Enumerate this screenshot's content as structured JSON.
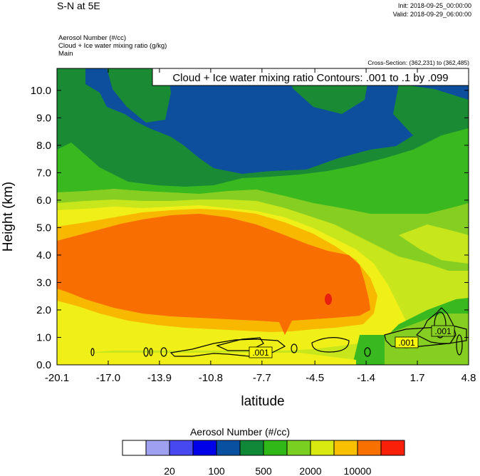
{
  "header": {
    "title": "S-N at 5E",
    "init": "Init: 2018-09-25_00:00:00",
    "valid": "Valid: 2018-09-29_06:00:00",
    "field1": "Aerosol Number   (#/cc)",
    "field2": "Cloud + Ice water mixing ratio   (g/kg)",
    "field3": "Main",
    "cross_section": "Cross-Section: (362,231) to (362,485)"
  },
  "chart_data": {
    "type": "heatmap",
    "title": "Cloud + Ice water mixing ratio Contours: .001 to .1 by .099",
    "xlabel": "latitude",
    "ylabel": "Height (km)",
    "xlim": [
      -20.1,
      4.8
    ],
    "ylim": [
      0.0,
      10.8
    ],
    "x_ticks": [
      "-20.1",
      "-17.0",
      "-13.9",
      "-10.8",
      "-7.7",
      "-4.5",
      "-1.4",
      "1.7",
      "4.8"
    ],
    "x_tick_values": [
      -20.1,
      -17.0,
      -13.9,
      -10.8,
      -7.7,
      -4.5,
      -1.4,
      1.7,
      4.8
    ],
    "y_ticks": [
      "0.0",
      "1.0",
      "2.0",
      "3.0",
      "4.0",
      "5.0",
      "6.0",
      "7.0",
      "8.0",
      "9.0",
      "10.0"
    ],
    "y_tick_values": [
      0,
      1,
      2,
      3,
      4,
      5,
      6,
      7,
      8,
      9,
      10
    ],
    "contour_labels": [
      {
        "text": ".001",
        "x": -7.4,
        "y": 0.4
      },
      {
        "text": ".001",
        "x": 1.6,
        "y": 0.75
      },
      {
        "text": ".001",
        "x": 3.8,
        "y": 1.2
      }
    ],
    "colorbar": {
      "title": "Aerosol Number  (#/cc)",
      "colors": [
        "#ffffff",
        "#a0a0f0",
        "#4848f0",
        "#0000e8",
        "#0a50a0",
        "#108838",
        "#30b818",
        "#7ad020",
        "#d8ea10",
        "#f8c000",
        "#f87000",
        "#f82008"
      ],
      "labels": [
        "20",
        "100",
        "500",
        "2000",
        "10000"
      ]
    },
    "fill_colors": {
      "dark_blue": "#0d4f9c",
      "dark_green": "#1a8a35",
      "green": "#3ab820",
      "light_green": "#86cf22",
      "yellow_green": "#c8e61c",
      "yellow": "#f0f018",
      "orange": "#f8b800",
      "dark_orange": "#f86e00",
      "red": "#e82010"
    }
  }
}
